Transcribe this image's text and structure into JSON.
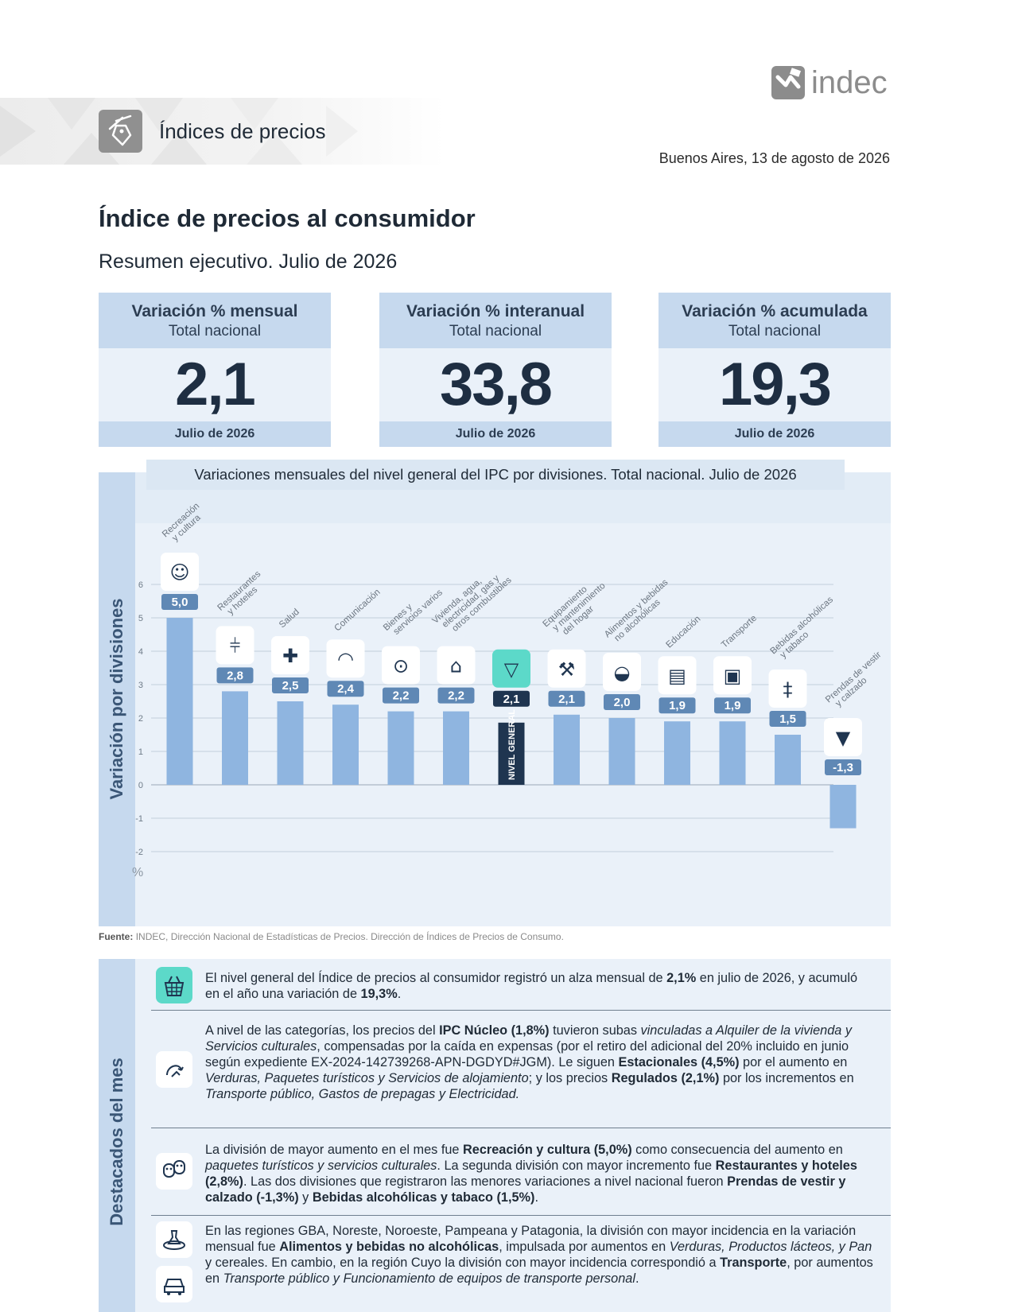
{
  "header": {
    "section_title": "Índices de precios",
    "logo_text": "indec",
    "date": "Buenos Aires, 13 de agosto de 2026",
    "section_icon": "price-tag-icon",
    "logo_icon": "indec-logo-mark"
  },
  "doc": {
    "title": "Índice de precios al consumidor",
    "subtitle": "Resumen ejecutivo. Julio de 2026"
  },
  "kpis": [
    {
      "title": "Variación % mensual",
      "subtitle": "Total nacional",
      "value": "2,1",
      "period": "Julio de 2026"
    },
    {
      "title": "Variación % interanual",
      "subtitle": "Total nacional",
      "value": "33,8",
      "period": "Julio de 2026"
    },
    {
      "title": "Variación % acumulada",
      "subtitle": "Total nacional",
      "value": "19,3",
      "period": "Julio de 2026"
    }
  ],
  "chart_data": {
    "type": "bar",
    "title": "Variaciones mensuales del nivel general del IPC por divisiones. Total nacional. Julio de 2026",
    "ylabel": "Variación por divisiones",
    "yunit": "%",
    "ylim": [
      -2,
      6
    ],
    "yticks": [
      6,
      5,
      4,
      3,
      2,
      1,
      0,
      -1,
      -2
    ],
    "grid": true,
    "general_label": "NIVEL GENERAL",
    "categories": [
      {
        "lines": [
          "Recreación",
          "y cultura"
        ],
        "value": 5.0,
        "label": "5,0",
        "icon": "theater-masks-icon"
      },
      {
        "lines": [
          "Restaurantes",
          "y hoteles"
        ],
        "value": 2.8,
        "label": "2,8",
        "icon": "restaurant-hotel-icon"
      },
      {
        "lines": [
          "Salud"
        ],
        "value": 2.5,
        "label": "2,5",
        "icon": "health-cross-icon"
      },
      {
        "lines": [
          "Comunicación"
        ],
        "value": 2.4,
        "label": "2,4",
        "icon": "wifi-icon"
      },
      {
        "lines": [
          "Bienes y",
          "servicios varios"
        ],
        "value": 2.2,
        "label": "2,2",
        "icon": "personal-care-icon"
      },
      {
        "lines": [
          "Vivienda, agua,",
          "electricidad, gas y",
          "otros combustibles"
        ],
        "value": 2.2,
        "label": "2,2",
        "icon": "house-energy-icon"
      },
      {
        "lines": [],
        "value": 2.1,
        "label": "2,1",
        "icon": "basket-icon",
        "general": true
      },
      {
        "lines": [
          "Equipamiento",
          "y mantenimiento",
          "del hogar"
        ],
        "value": 2.1,
        "label": "2,1",
        "icon": "tools-icon"
      },
      {
        "lines": [
          "Alimentos y bebidas",
          "no alcohólicas"
        ],
        "value": 2.0,
        "label": "2,0",
        "icon": "food-icon"
      },
      {
        "lines": [
          "Educación"
        ],
        "value": 1.9,
        "label": "1,9",
        "icon": "book-icon"
      },
      {
        "lines": [
          "Transporte"
        ],
        "value": 1.9,
        "label": "1,9",
        "icon": "car-icon"
      },
      {
        "lines": [
          "Bebidas alcohólicas",
          "y tabaco"
        ],
        "value": 1.5,
        "label": "1,5",
        "icon": "bottle-icon"
      },
      {
        "lines": [
          "Prendas de vestir",
          "y calzado"
        ],
        "value": -1.3,
        "label": "-1,3",
        "icon": "tshirt-icon"
      }
    ],
    "colors": {
      "bar": "#8fb5e0",
      "general_bar": "#1f3550",
      "label_bg": "#5f88b5",
      "general_label_bg": "#1f3550"
    }
  },
  "source": {
    "prefix": "Fuente:",
    "text": "INDEC, Dirección Nacional de Estadísticas de Precios. Dirección de Índices de Precios de Consumo."
  },
  "highlights": {
    "title": "Destacados del mes",
    "items": [
      {
        "icon": "basket-icon",
        "parts": [
          {
            "t": "El nivel general del Índice de precios al consumidor registró un alza mensual de "
          },
          {
            "t": "2,1%",
            "b": true
          },
          {
            "t": " en julio de 2026, y acumuló en el año una variación de "
          },
          {
            "t": "19,3%",
            "b": true
          },
          {
            "t": "."
          }
        ]
      },
      {
        "icon": "trend-icon",
        "parts": [
          {
            "t": "A nivel de las categorías, los precios del "
          },
          {
            "t": "IPC Núcleo (1,8%)",
            "b": true
          },
          {
            "t": " tuvieron subas "
          },
          {
            "t": "vinculadas a Alquiler de la vivienda y Servicios culturales",
            "i": true
          },
          {
            "t": ", compensadas por la caída en expensas (por el retiro del adicional del 20% incluido en junio según expediente EX-2024-142739268-APN-DGDYD#JGM). Le siguen "
          },
          {
            "t": "Estacionales (4,5%)",
            "b": true
          },
          {
            "t": " por el aumento en "
          },
          {
            "t": "Verduras, Paquetes turísticos y Servicios de alojamiento",
            "i": true
          },
          {
            "t": "; y los precios "
          },
          {
            "t": "Regulados (2,1%)",
            "b": true
          },
          {
            "t": " por los incrementos en "
          },
          {
            "t": "Transporte público, Gastos de prepagas y Electricidad.",
            "i": true
          }
        ]
      },
      {
        "icon": "theater-masks-icon",
        "parts": [
          {
            "t": "La división de mayor aumento en el mes fue "
          },
          {
            "t": "Recreación y cultura (5,0%)",
            "b": true
          },
          {
            "t": " como consecuencia del aumento en "
          },
          {
            "t": "paquetes turísticos y servicios culturales",
            "i": true
          },
          {
            "t": ". La segunda división con mayor incremento fue "
          },
          {
            "t": "Restaurantes y hoteles (2,8%)",
            "b": true
          },
          {
            "t": ". Las dos divisiones que registraron las menores variaciones a nivel nacional fueron "
          },
          {
            "t": "Prendas de vestir y calzado (-1,3%)",
            "b": true
          },
          {
            "t": " y "
          },
          {
            "t": "Bebidas alcohólicas y tabaco (1,5%)",
            "b": true
          },
          {
            "t": "."
          }
        ]
      },
      {
        "icons": [
          "food-icon",
          "car-icon"
        ],
        "parts": [
          {
            "t": "En las regiones GBA, Noreste, Noroeste, Pampeana y Patagonia, la división con mayor incidencia en la variación mensual fue "
          },
          {
            "t": "Alimentos y bebidas no alcohólicas",
            "b": true
          },
          {
            "t": ", impulsada por aumentos en "
          },
          {
            "t": "Verduras, Productos lácteos, y Pan",
            "i": true
          },
          {
            "t": " y cereales. En cambio, en la región Cuyo la división con mayor incidencia correspondió a "
          },
          {
            "t": "Transporte",
            "b": true
          },
          {
            "t": ", por aumentos en "
          },
          {
            "t": "Transporte público y Funcionamiento de equipos de transporte personal",
            "i": true
          },
          {
            "t": "."
          }
        ]
      }
    ]
  }
}
